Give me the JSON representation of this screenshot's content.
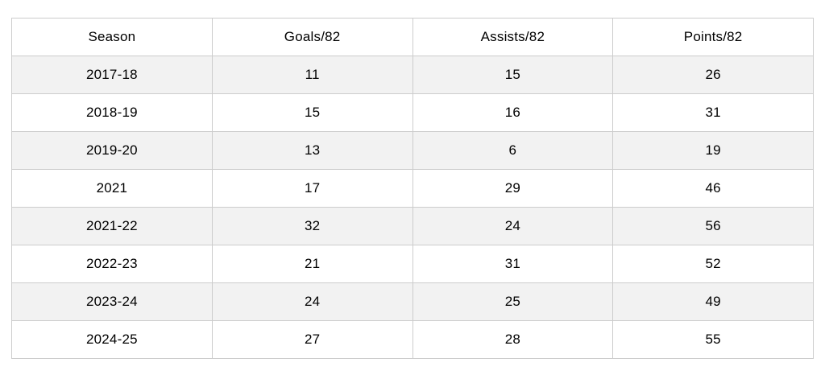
{
  "chart_data": {
    "type": "table",
    "columns": [
      "Season",
      "Goals/82",
      "Assists/82",
      "Points/82"
    ],
    "rows": [
      [
        "2017-18",
        11,
        15,
        26
      ],
      [
        "2018-19",
        15,
        16,
        31
      ],
      [
        "2019-20",
        13,
        6,
        19
      ],
      [
        "2021",
        17,
        29,
        46
      ],
      [
        "2021-22",
        32,
        24,
        56
      ],
      [
        "2022-23",
        21,
        31,
        52
      ],
      [
        "2023-24",
        24,
        25,
        49
      ],
      [
        "2024-25",
        27,
        28,
        55
      ]
    ]
  },
  "colors": {
    "row_alt_background": "#f2f2f2",
    "row_background": "#ffffff",
    "border": "#cccccc",
    "text": "#000000"
  }
}
